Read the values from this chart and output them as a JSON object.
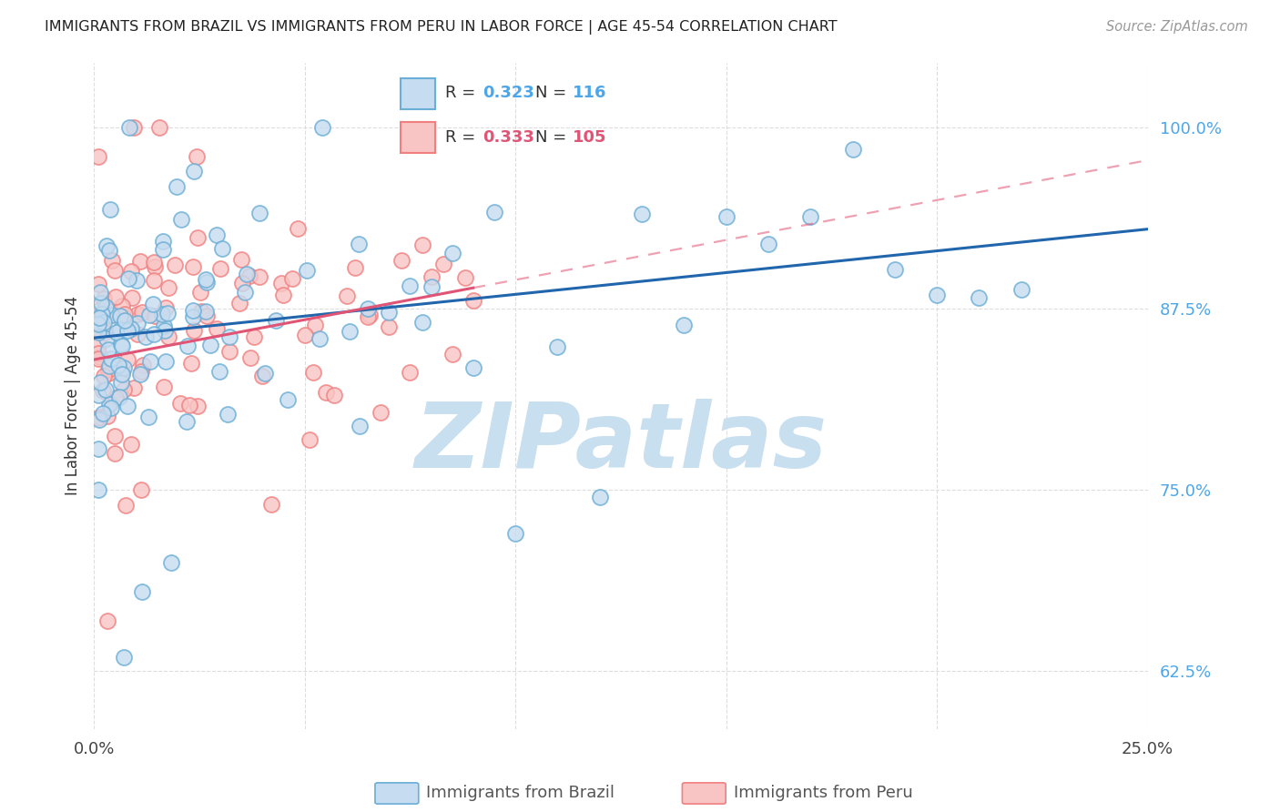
{
  "title": "IMMIGRANTS FROM BRAZIL VS IMMIGRANTS FROM PERU IN LABOR FORCE | AGE 45-54 CORRELATION CHART",
  "source": "Source: ZipAtlas.com",
  "ylabel": "In Labor Force | Age 45-54",
  "xlim": [
    0.0,
    0.25
  ],
  "ylim": [
    0.585,
    1.045
  ],
  "yticks": [
    0.625,
    0.75,
    0.875,
    1.0
  ],
  "ytick_labels": [
    "62.5%",
    "75.0%",
    "87.5%",
    "100.0%"
  ],
  "brazil_R": 0.323,
  "brazil_N": 116,
  "peru_R": 0.333,
  "peru_N": 105,
  "brazil_color": "#6baed6",
  "peru_color": "#f08080",
  "brazil_line_color": "#2166ac",
  "peru_line_color": "#e05575",
  "brazil_marker_face": "#c6dcf0",
  "peru_marker_face": "#f9c4c4",
  "background_color": "#ffffff",
  "watermark_color": "#c8dff0",
  "grid_color": "#dddddd",
  "brazil_intercept": 0.855,
  "brazil_slope": 0.3,
  "peru_intercept": 0.84,
  "peru_slope": 0.55
}
